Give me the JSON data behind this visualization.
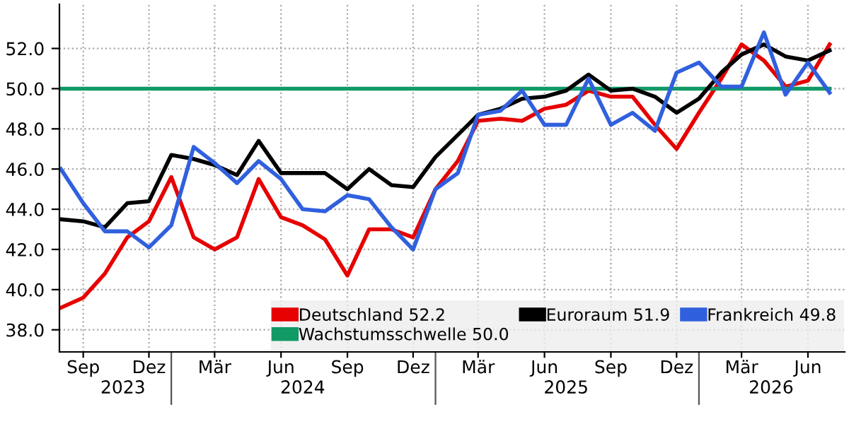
{
  "chart_data": {
    "type": "line",
    "x": [
      "2023-08",
      "2023-09",
      "2023-10",
      "2023-11",
      "2023-12",
      "2024-01",
      "2024-02",
      "2024-03",
      "2024-04",
      "2024-05",
      "2024-06",
      "2024-07",
      "2024-08",
      "2024-09",
      "2024-10",
      "2024-11",
      "2024-12",
      "2025-01",
      "2025-02",
      "2025-03",
      "2025-04",
      "2025-05",
      "2025-06",
      "2025-07",
      "2025-08",
      "2025-09",
      "2025-10",
      "2025-11",
      "2025-12",
      "2026-01",
      "2026-02",
      "2026-03",
      "2026-04",
      "2026-05",
      "2026-06",
      "2026-07"
    ],
    "series": [
      {
        "name": "Deutschland 52.2",
        "color": "#e60000",
        "values": [
          39.1,
          39.6,
          40.8,
          42.6,
          43.4,
          45.6,
          42.6,
          42.0,
          42.6,
          45.5,
          43.6,
          43.2,
          42.5,
          40.7,
          43.0,
          43.0,
          42.6,
          45.0,
          46.4,
          48.4,
          48.5,
          48.4,
          49.0,
          49.2,
          49.9,
          49.6,
          49.6,
          48.2,
          47.0,
          48.8,
          50.5,
          52.2,
          51.4,
          50.1,
          50.4,
          52.2
        ]
      },
      {
        "name": "Wachstumsschwelle 50.0",
        "color": "#119966",
        "values": [
          50.0,
          50.0,
          50.0,
          50.0,
          50.0,
          50.0,
          50.0,
          50.0,
          50.0,
          50.0,
          50.0,
          50.0,
          50.0,
          50.0,
          50.0,
          50.0,
          50.0,
          50.0,
          50.0,
          50.0,
          50.0,
          50.0,
          50.0,
          50.0,
          50.0,
          50.0,
          50.0,
          50.0,
          50.0,
          50.0,
          50.0,
          50.0,
          50.0,
          50.0,
          50.0,
          50.0
        ]
      },
      {
        "name": "Euroraum 51.9",
        "color": "#000000",
        "values": [
          43.5,
          43.4,
          43.1,
          44.3,
          44.4,
          46.7,
          46.5,
          46.2,
          45.7,
          47.4,
          45.8,
          45.8,
          45.8,
          45.0,
          46.0,
          45.2,
          45.1,
          46.6,
          47.7,
          48.7,
          49.0,
          49.5,
          49.6,
          49.9,
          50.7,
          49.9,
          50.0,
          49.6,
          48.8,
          49.5,
          50.8,
          51.7,
          52.2,
          51.6,
          51.4,
          51.9
        ]
      },
      {
        "name": "Frankreich 49.8",
        "color": "#3060dd",
        "values": [
          46.0,
          44.3,
          42.9,
          42.9,
          42.1,
          43.2,
          47.1,
          46.3,
          45.3,
          46.4,
          45.5,
          44.0,
          43.9,
          44.7,
          44.5,
          43.1,
          42.0,
          45.0,
          45.8,
          48.7,
          48.9,
          49.9,
          48.2,
          48.2,
          50.5,
          48.2,
          48.8,
          47.9,
          50.8,
          51.3,
          50.1,
          50.1,
          52.8,
          49.7,
          51.3,
          49.8
        ]
      }
    ],
    "xlim": [
      "2023-07-30",
      "2026-07-22"
    ],
    "xticks": [
      {
        "value": "2023-09",
        "label": "Sep"
      },
      {
        "value": "2023-12",
        "label": "Dez"
      },
      {
        "value": "2024-03",
        "label": "Mär"
      },
      {
        "value": "2024-06",
        "label": "Jun"
      },
      {
        "value": "2024-09",
        "label": "Sep"
      },
      {
        "value": "2024-12",
        "label": "Dez"
      },
      {
        "value": "2025-03",
        "label": "Mär"
      },
      {
        "value": "2025-06",
        "label": "Jun"
      },
      {
        "value": "2025-09",
        "label": "Sep"
      },
      {
        "value": "2025-12",
        "label": "Dez"
      },
      {
        "value": "2026-03",
        "label": "Mär"
      },
      {
        "value": "2026-06",
        "label": "Jun"
      }
    ],
    "x2lim": [
      "2023-07-30",
      "2026-07-22"
    ],
    "x2ticks": [
      {
        "value": "2023-10-26",
        "label": "2023"
      },
      {
        "value": "2024-07-01",
        "label": "2024"
      },
      {
        "value": "2025-07-01",
        "label": "2025"
      },
      {
        "value": "2026-04-11",
        "label": "2026"
      }
    ],
    "ylim": [
      36.9,
      54.2
    ],
    "yticks": [
      {
        "value": 38,
        "label": "38.0"
      },
      {
        "value": 40,
        "label": "40.0"
      },
      {
        "value": 42,
        "label": "42.0"
      },
      {
        "value": 44,
        "label": "44.0"
      },
      {
        "value": 46,
        "label": "46.0"
      },
      {
        "value": 48,
        "label": "48.0"
      },
      {
        "value": 50,
        "label": "50.0"
      },
      {
        "value": 52,
        "label": "52.0"
      }
    ],
    "grid": true,
    "legend": "bottom right",
    "line_style": "solid",
    "marker": "none"
  }
}
